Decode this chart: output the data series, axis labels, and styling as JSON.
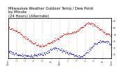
{
  "title": "Milwaukee Weather Outdoor Temp / Dew Point\nby Minute\n(24 Hours) (Alternate)",
  "title_fontsize": 3.8,
  "title_color": "#000000",
  "background_color": "#ffffff",
  "plot_bg_color": "#ffffff",
  "temp_color": "#ff0000",
  "dew_color": "#0000ff",
  "grid_color": "#999999",
  "right_tick_color": "#333333",
  "ylim": [
    15,
    75
  ],
  "xlim": [
    0,
    1440
  ],
  "yticks_right": [
    20,
    30,
    40,
    50,
    60,
    70
  ],
  "xtick_hours": [
    0,
    2,
    4,
    6,
    8,
    10,
    12,
    14,
    16,
    18,
    20,
    22,
    24
  ],
  "hour_labels": [
    "12am",
    "2",
    "4",
    "6",
    "8",
    "10",
    "12pm",
    "2",
    "4",
    "6",
    "8",
    "10",
    "12am"
  ],
  "num_points": 1440,
  "seed": 42,
  "temp_keypoints": [
    [
      0,
      60
    ],
    [
      60,
      58
    ],
    [
      120,
      55
    ],
    [
      180,
      50
    ],
    [
      240,
      45
    ],
    [
      300,
      40
    ],
    [
      360,
      36
    ],
    [
      420,
      34
    ],
    [
      480,
      33
    ],
    [
      540,
      35
    ],
    [
      600,
      38
    ],
    [
      660,
      42
    ],
    [
      720,
      46
    ],
    [
      780,
      50
    ],
    [
      840,
      52
    ],
    [
      900,
      53
    ],
    [
      960,
      55
    ],
    [
      1020,
      60
    ],
    [
      1080,
      65
    ],
    [
      1140,
      67
    ],
    [
      1200,
      65
    ],
    [
      1260,
      60
    ],
    [
      1320,
      55
    ],
    [
      1380,
      50
    ],
    [
      1440,
      48
    ]
  ],
  "dew_keypoints": [
    [
      0,
      25
    ],
    [
      60,
      22
    ],
    [
      120,
      20
    ],
    [
      180,
      19
    ],
    [
      240,
      18
    ],
    [
      300,
      17
    ],
    [
      360,
      18
    ],
    [
      420,
      20
    ],
    [
      480,
      22
    ],
    [
      540,
      23
    ],
    [
      600,
      28
    ],
    [
      660,
      30
    ],
    [
      720,
      28
    ],
    [
      780,
      25
    ],
    [
      840,
      22
    ],
    [
      900,
      20
    ],
    [
      960,
      18
    ],
    [
      1020,
      17
    ],
    [
      1080,
      22
    ],
    [
      1140,
      28
    ],
    [
      1200,
      35
    ],
    [
      1260,
      38
    ],
    [
      1320,
      40
    ],
    [
      1380,
      38
    ],
    [
      1440,
      35
    ]
  ]
}
